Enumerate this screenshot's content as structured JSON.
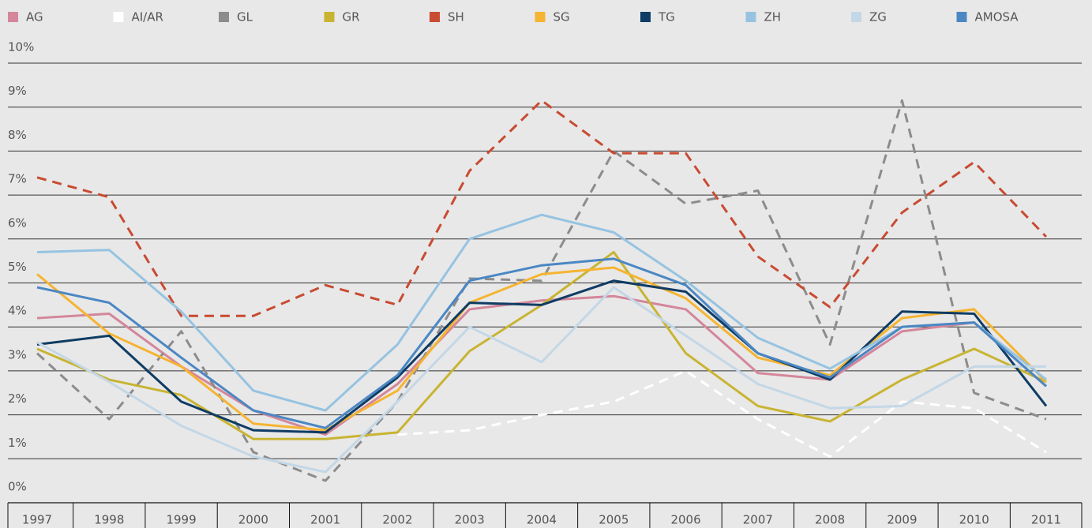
{
  "chart_data": {
    "type": "line",
    "categories": [
      "1997",
      "1998",
      "1999",
      "2000",
      "2001",
      "2002",
      "2003",
      "2004",
      "2005",
      "2006",
      "2007",
      "2008",
      "2009",
      "2010",
      "2011"
    ],
    "ylim": [
      0,
      10
    ],
    "yticks": [
      {
        "value": 0,
        "label": "0%"
      },
      {
        "value": 1,
        "label": "1%"
      },
      {
        "value": 2,
        "label": "2%"
      },
      {
        "value": 3,
        "label": "3%"
      },
      {
        "value": 4,
        "label": "4%"
      },
      {
        "value": 5,
        "label": "5%"
      },
      {
        "value": 6,
        "label": "6%"
      },
      {
        "value": 7,
        "label": "7%"
      },
      {
        "value": 8,
        "label": "8%"
      },
      {
        "value": 9,
        "label": "9%"
      },
      {
        "value": 10,
        "label": "10%"
      }
    ],
    "grid": true,
    "series": [
      {
        "name": "AG",
        "color": "#d4869b",
        "line_style": "solid",
        "values": [
          4.2,
          4.3,
          3.1,
          2.1,
          1.55,
          2.7,
          4.4,
          4.6,
          4.7,
          4.4,
          2.95,
          2.8,
          3.9,
          4.1,
          2.65
        ]
      },
      {
        "name": "AI/AR",
        "color": "#ffffff",
        "line_style": "dashed",
        "values": [
          null,
          null,
          null,
          null,
          null,
          1.55,
          1.65,
          2.0,
          2.3,
          3.0,
          1.9,
          1.05,
          2.3,
          2.15,
          1.15
        ]
      },
      {
        "name": "GL",
        "color": "#8c8c8c",
        "line_style": "dashed",
        "values": [
          3.4,
          1.9,
          3.9,
          1.15,
          0.5,
          2.3,
          5.1,
          5.05,
          8.0,
          6.8,
          7.1,
          3.6,
          9.15,
          2.5,
          1.9
        ]
      },
      {
        "name": "GR",
        "color": "#c8b432",
        "line_style": "solid",
        "values": [
          3.5,
          2.8,
          2.45,
          1.45,
          1.45,
          1.6,
          3.45,
          4.5,
          5.7,
          3.4,
          2.2,
          1.85,
          2.8,
          3.5,
          2.75
        ]
      },
      {
        "name": "SH",
        "color": "#c84b32",
        "line_style": "dashed",
        "values": [
          7.4,
          6.95,
          4.25,
          4.25,
          4.95,
          4.5,
          7.55,
          9.15,
          7.95,
          7.95,
          5.6,
          4.45,
          6.6,
          7.75,
          6.05
        ]
      },
      {
        "name": "SG",
        "color": "#f5b432",
        "line_style": "solid",
        "values": [
          5.2,
          3.85,
          3.1,
          1.8,
          1.65,
          2.55,
          4.55,
          5.2,
          5.35,
          4.65,
          3.3,
          2.9,
          4.2,
          4.4,
          2.75
        ]
      },
      {
        "name": "TG",
        "color": "#0f3c64",
        "line_style": "solid",
        "values": [
          3.6,
          3.8,
          2.3,
          1.65,
          1.6,
          2.85,
          4.55,
          4.5,
          5.05,
          4.8,
          3.4,
          2.8,
          4.35,
          4.3,
          2.2
        ]
      },
      {
        "name": "ZH",
        "color": "#96c3e1",
        "line_style": "solid",
        "values": [
          5.7,
          5.75,
          4.35,
          2.55,
          2.1,
          3.6,
          6.0,
          6.55,
          6.15,
          5.05,
          3.75,
          3.05,
          4.0,
          4.1,
          2.8
        ]
      },
      {
        "name": "ZG",
        "color": "#c3d7e6",
        "line_style": "solid",
        "values": [
          3.65,
          2.75,
          1.75,
          1.05,
          0.7,
          2.3,
          4.0,
          3.2,
          4.9,
          3.8,
          2.7,
          2.15,
          2.2,
          3.1,
          3.1
        ]
      },
      {
        "name": "AMOSA",
        "color": "#4b87c3",
        "line_style": "solid",
        "values": [
          4.9,
          4.55,
          3.3,
          2.1,
          1.7,
          2.9,
          5.05,
          5.4,
          5.55,
          4.95,
          3.4,
          2.85,
          4.0,
          4.1,
          2.65
        ]
      }
    ]
  }
}
